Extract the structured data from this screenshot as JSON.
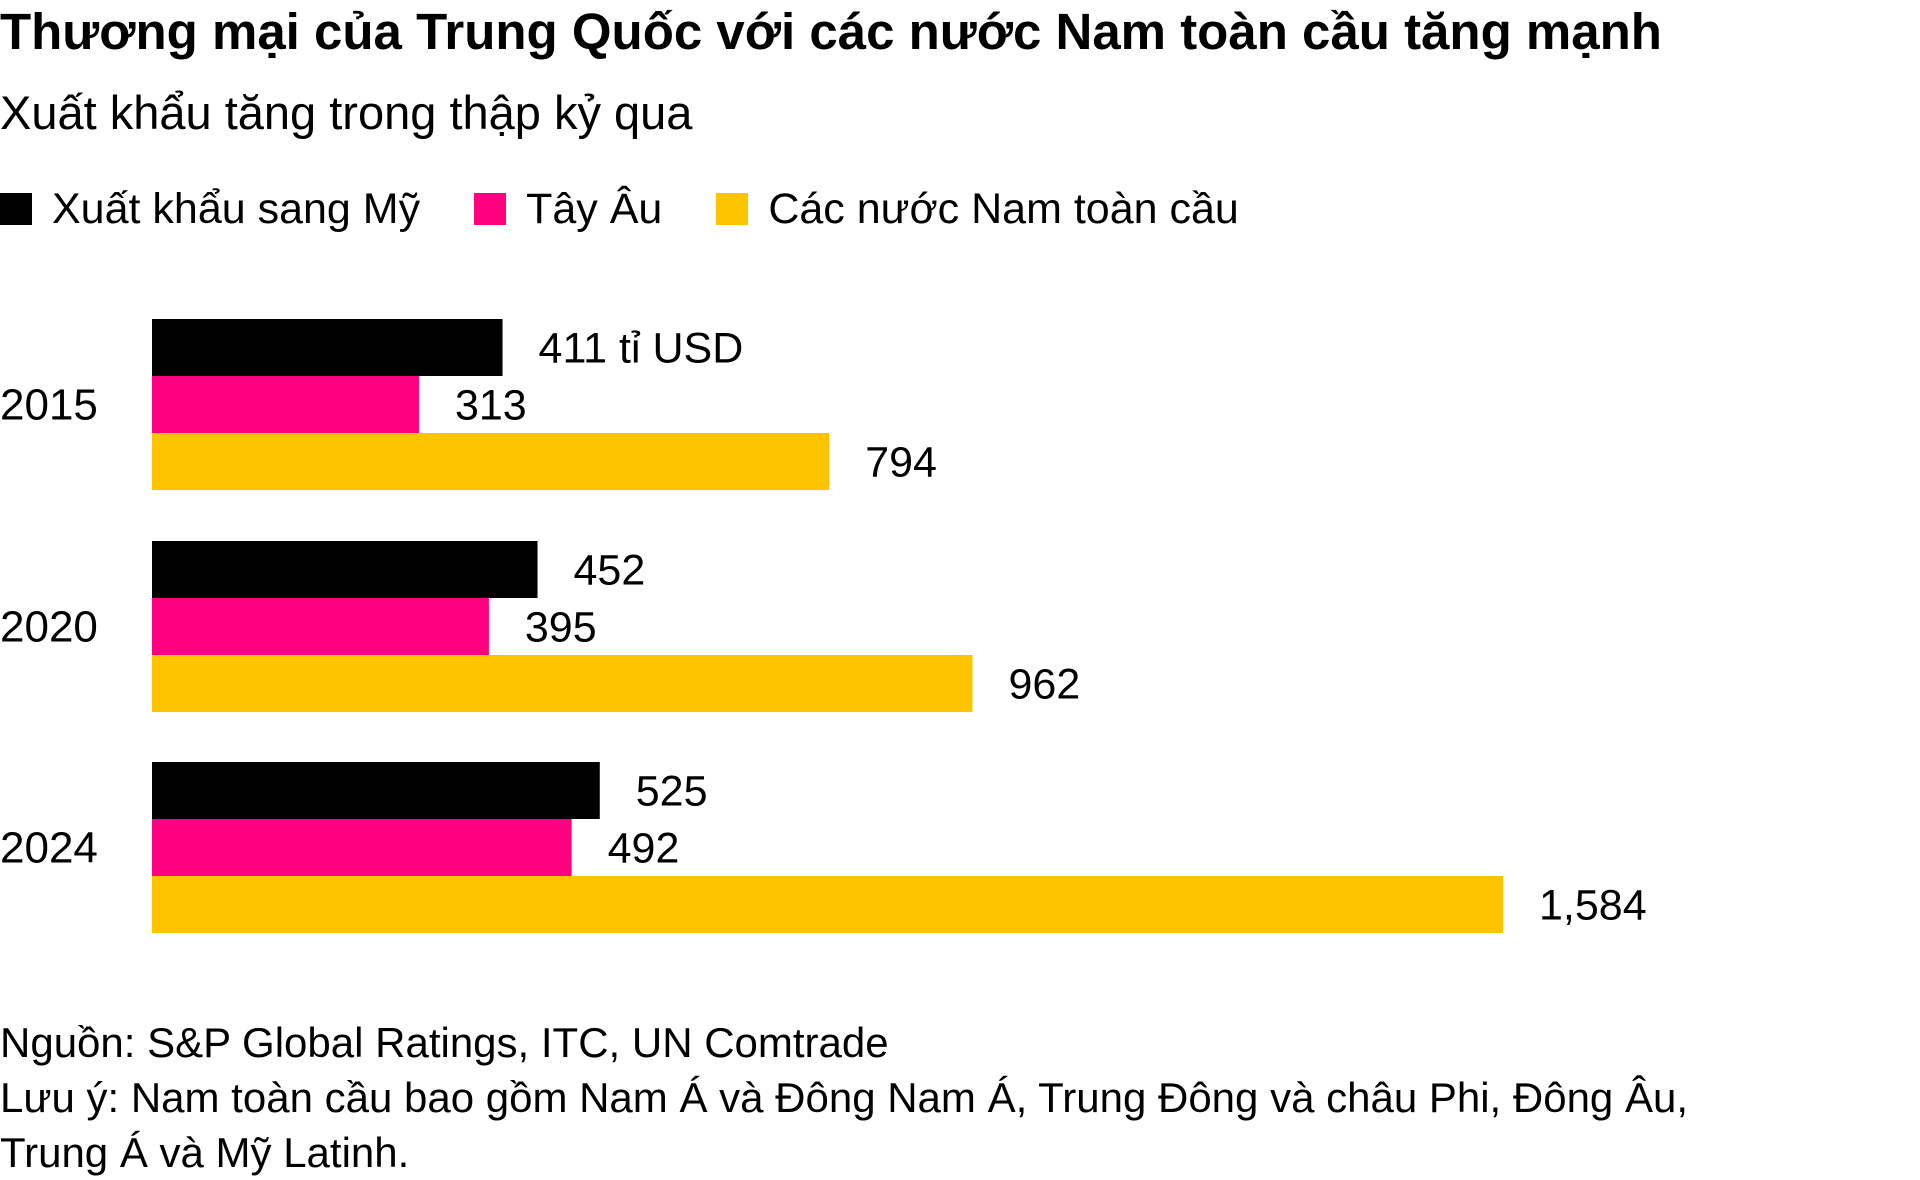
{
  "title": "Thương mại của Trung Quốc với các nước Nam toàn cầu tăng mạnh",
  "subtitle": "Xuất khẩu tăng trong thập kỷ qua",
  "legend": [
    {
      "label": "Xuất khẩu sang Mỹ",
      "color": "#000000"
    },
    {
      "label": "Tây Âu",
      "color": "#ff0080"
    },
    {
      "label": "Các nước Nam toàn cầu",
      "color": "#ffc400"
    }
  ],
  "chart_data": {
    "type": "bar",
    "orientation": "horizontal",
    "categories": [
      "2015",
      "2020",
      "2024"
    ],
    "unit_label": "tỉ USD",
    "series": [
      {
        "name": "Xuất khẩu sang Mỹ",
        "color": "#000000",
        "values": [
          411,
          452,
          525
        ],
        "labels": [
          "411 tỉ USD",
          "452",
          "525"
        ]
      },
      {
        "name": "Tây Âu",
        "color": "#ff0080",
        "values": [
          313,
          395,
          492
        ],
        "labels": [
          "313",
          "395",
          "492"
        ]
      },
      {
        "name": "Các nước Nam toàn cầu",
        "color": "#ffc400",
        "values": [
          794,
          962,
          1584
        ],
        "labels": [
          "794",
          "962",
          "1,584"
        ]
      }
    ],
    "xlim": [
      0,
      1584
    ],
    "grid": false,
    "legend_position": "top-left"
  },
  "footer": {
    "source": "Nguồn: S&P Global Ratings, ITC, UN Comtrade",
    "note_line1": "Lưu ý: Nam toàn cầu bao gồm Nam Á và Đông Nam Á, Trung Đông và châu Phi, Đông Âu,",
    "note_line2": "Trung Á và Mỹ Latinh."
  }
}
